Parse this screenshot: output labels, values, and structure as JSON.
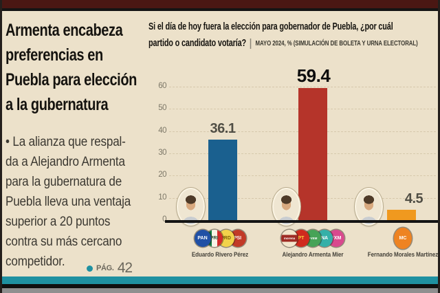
{
  "theme": {
    "background": "#ece1ca",
    "top_bar": "#4a1713",
    "accent_teal": "#1f91a1",
    "frame_dark": "#141414"
  },
  "sidebar": {
    "headline": "Armenta encabeza\npreferencias en\nPuebla para elección\na la gubernatura",
    "summary": "• La alianza que respal-\nda a Alejandro Armenta\npara la gubernatura de\nPuebla lleva una ventaja\nsuperior a 20 puntos\ncontra su más cercano\ncompetidor.",
    "page_ref": {
      "label": "PÁG.",
      "number": "42"
    }
  },
  "chart": {
    "header": {
      "line1": "Si el día de hoy fuera la elección para gobernador de Puebla, ¿por cuál",
      "line2": "partido o candidato votaría?",
      "subtitle": "MAYO 2024, % (SIMULACIÓN DE BOLETA Y URNA ELECTORAL)"
    }
  },
  "chart_data": {
    "type": "bar",
    "title": "Si el día de hoy fuera la elección para gobernador de Puebla, ¿por cuál partido o candidato votaría?",
    "subtitle": "MAYO 2024, % (SIMULACIÓN DE BOLETA Y URNA ELECTORAL)",
    "categories": [
      "Eduardo Rivero Pérez",
      "Alejandro Armenta Mier",
      "Fernando Morales Martínez"
    ],
    "values": [
      36.1,
      59.4,
      4.5
    ],
    "value_labels": [
      "36.1",
      "59.4",
      "4.5"
    ],
    "bar_colors": [
      "#1a608f",
      "#b5342a",
      "#f0991f"
    ],
    "ylim": [
      0,
      60
    ],
    "yticks": [
      0,
      10,
      20,
      30,
      40,
      50,
      60
    ],
    "grid": true,
    "legend_position": "none"
  },
  "candidates": [
    {
      "name": "Eduardo Rivero Pérez",
      "value_label": "36.1",
      "parties": [
        {
          "name": "PAN",
          "label": "PAN",
          "bg": "#2050a5",
          "fg": "#ffffff"
        },
        {
          "name": "PRI",
          "label": "PRI",
          "bg": "tricolor",
          "fg": "#2c4a2f"
        },
        {
          "name": "PRD",
          "label": "PRD",
          "bg": "#f2d24b",
          "fg": "#7a5c00"
        },
        {
          "name": "PSI",
          "label": "PSI",
          "bg": "#c23a28",
          "fg": "#ffffff"
        }
      ]
    },
    {
      "name": "Alejandro Armenta Mier",
      "value_label": "59.4",
      "parties": [
        {
          "name": "MORENA",
          "label": "morena",
          "bg": "#f2e6cd",
          "fg": "#ffffff",
          "band": "#9e2b23"
        },
        {
          "name": "PT",
          "label": "PT",
          "bg": "#d02a1e",
          "fg": "#ffd23f"
        },
        {
          "name": "PVEM",
          "label": "PVEM",
          "bg": "#46a357",
          "fg": "#ffffff"
        },
        {
          "name": "NUEVA ALIANZA",
          "label": "NA",
          "bg": "#35b0a8",
          "fg": "#ffffff"
        },
        {
          "name": "FUERZA POR MÉXICO",
          "label": "FXM",
          "bg": "#d9498e",
          "fg": "#ffffff"
        }
      ]
    },
    {
      "name": "Fernando Morales Martínez",
      "value_label": "4.5",
      "parties": [
        {
          "name": "MOVIMIENTO CIUDADANO",
          "label": "MC",
          "bg": "#ee8322",
          "fg": "#ffffff"
        }
      ]
    }
  ]
}
